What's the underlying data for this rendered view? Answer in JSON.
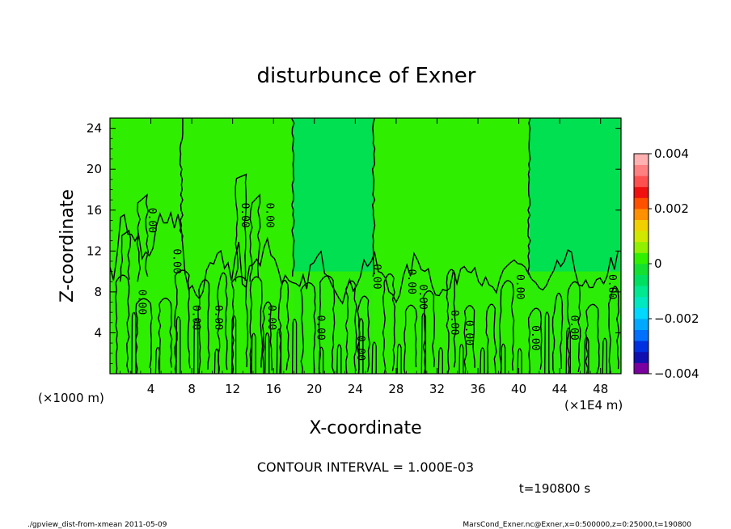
{
  "chart_data": {
    "type": "heatmap",
    "title": "disturbunce of Exner",
    "xlabel": "X-coordinate",
    "ylabel": "Z-coordinate",
    "x_unit_left": "(×1000 m)",
    "x_unit_right": "(×1E4 m)",
    "xlim": [
      0,
      50
    ],
    "ylim": [
      0,
      25
    ],
    "x_ticks": [
      4,
      8,
      12,
      16,
      20,
      24,
      28,
      32,
      36,
      40,
      44,
      48
    ],
    "y_ticks": [
      4,
      8,
      12,
      16,
      20,
      24
    ],
    "x_tick_labels": [
      "4",
      "8",
      "12",
      "16",
      "20",
      "24",
      "28",
      "32",
      "36",
      "40",
      "44",
      "48"
    ],
    "y_tick_labels": [
      "4",
      "8",
      "12",
      "16",
      "20",
      "24"
    ],
    "contour_interval_text": "CONTOUR INTERVAL = 1.000E-03",
    "time_text": "t=190800 s",
    "contour_label": "0.00",
    "colorbar": {
      "min": -0.004,
      "max": 0.004,
      "tick_values": [
        0.004,
        0.002,
        0,
        -0.002,
        -0.004
      ],
      "tick_labels": [
        "0.004",
        "0.002",
        "0",
        "−0.002",
        "−0.004"
      ],
      "colors": [
        "#7a00a0",
        "#1010b0",
        "#0030e0",
        "#0070ff",
        "#00a8ff",
        "#00d8ff",
        "#00e8c0",
        "#00e890",
        "#00e060",
        "#14e030",
        "#30f000",
        "#90f000",
        "#d0e800",
        "#f0d000",
        "#ff9000",
        "#ff5000",
        "#f01010",
        "#ff5050",
        "#ff8080",
        "#ffb0b0"
      ]
    },
    "field_colors": {
      "zero_band_a": "#30ee00",
      "zero_band_b": "#00e050"
    },
    "vertical_contours_x": [
      17.9,
      25.8,
      41.0
    ],
    "plume_centers_x": [
      1.2,
      3.3,
      5.4,
      7.1,
      9.2,
      11.0,
      12.7,
      14.3,
      15.4,
      17.0,
      19.4,
      21.2,
      23.6,
      24.8,
      27.3,
      29.4,
      31.2,
      33.4,
      35.2,
      37.3,
      38.8,
      41.6,
      43.8,
      45.4,
      47.2,
      49.3
    ]
  },
  "footer": {
    "left": "./gpview_dist-from-xmean  2011-05-09",
    "right": "MarsCond_Exner.nc@Exner,x=0:500000,z=0:25000,t=190800"
  }
}
